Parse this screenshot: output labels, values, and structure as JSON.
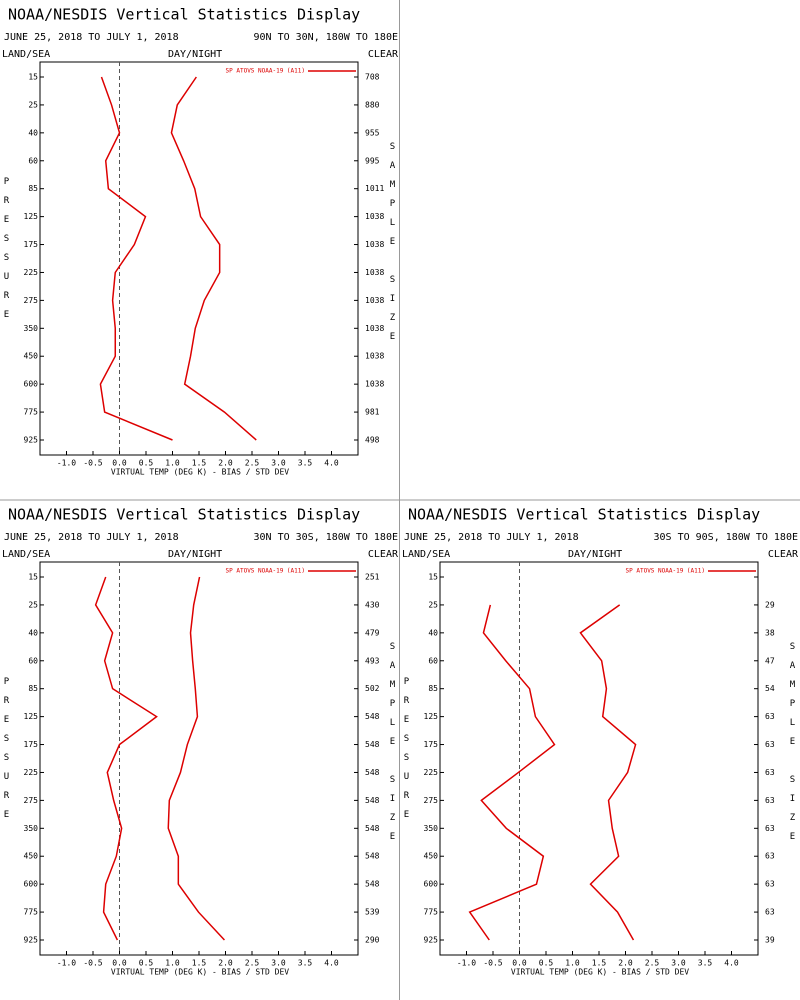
{
  "chart_data": [
    {
      "type": "line",
      "title": "NOAA/NESDIS Vertical Statistics Display",
      "subtitle": "JUNE 25, 2018 TO JULY 1, 2018",
      "region": "90N TO 30N, 180W TO 180E",
      "land_sea": "LAND/SEA",
      "day_night": "DAY/NIGHT",
      "clear": "CLEAR",
      "y_label": "PRESSURE",
      "y2_label": "SAMPLE SIZE",
      "x_label": "VIRTUAL TEMP (DEG K) - BIAS / STD DEV",
      "legend": "SP ATOVS NOAA-19 (A11)",
      "color": "#dd0000",
      "categories": [
        "15",
        "25",
        "40",
        "60",
        "85",
        "125",
        "175",
        "225",
        "275",
        "350",
        "450",
        "600",
        "775",
        "925"
      ],
      "series": [
        {
          "color": "#dd0000",
          "values": [
            -0.34,
            -0.15,
            0.0,
            -0.26,
            -0.21,
            0.49,
            0.28,
            -0.08,
            -0.13,
            -0.08,
            -0.08,
            -0.36,
            -0.28,
            1.0
          ]
        },
        {
          "color": "#dd0000",
          "values": [
            1.45,
            1.09,
            0.98,
            1.21,
            1.42,
            1.53,
            1.89,
            1.89,
            1.6,
            1.43,
            1.34,
            1.23,
            1.98,
            2.58
          ]
        }
      ],
      "sample_size": [
        708,
        880,
        955,
        995,
        1011,
        1038,
        1038,
        1038,
        1038,
        1038,
        1038,
        1038,
        981,
        498
      ],
      "xlim": [
        -1.5,
        4.5
      ],
      "reference_line": 0,
      "xticks": [
        {
          "value": -1,
          "label": "-1.0"
        },
        -0.5,
        {
          "value": 0,
          "label": "0.0"
        },
        0.5,
        {
          "value": 1,
          "label": "1.0"
        },
        1.5,
        {
          "value": 2,
          "label": "2.0"
        },
        2.5,
        {
          "value": 3,
          "label": "3.0"
        },
        3.5,
        {
          "value": 4,
          "label": "4.0"
        }
      ]
    },
    {
      "type": "line",
      "title": "NOAA/NESDIS Vertical Statistics Display",
      "subtitle": "JUNE 25, 2018 TO JULY 1, 2018",
      "region": "30N TO 30S, 180W TO 180E",
      "land_sea": "LAND/SEA",
      "day_night": "DAY/NIGHT",
      "clear": "CLEAR",
      "y_label": "PRESSURE",
      "y2_label": "SAMPLE SIZE",
      "x_label": "VIRTUAL TEMP (DEG K) - BIAS / STD DEV",
      "legend": "SP ATOVS NOAA-19 (A11)",
      "color": "#dd0000",
      "categories": [
        "15",
        "25",
        "40",
        "60",
        "85",
        "125",
        "175",
        "225",
        "275",
        "350",
        "450",
        "600",
        "775",
        "925"
      ],
      "series": [
        {
          "color": "#dd0000",
          "values": [
            -0.26,
            -0.45,
            -0.13,
            -0.28,
            -0.13,
            0.7,
            0.0,
            -0.23,
            -0.11,
            0.04,
            -0.06,
            -0.26,
            -0.3,
            -0.04
          ]
        },
        {
          "color": "#dd0000",
          "values": [
            1.51,
            1.4,
            1.34,
            1.38,
            1.43,
            1.47,
            1.28,
            1.15,
            0.94,
            0.92,
            1.11,
            1.11,
            1.49,
            1.98
          ]
        }
      ],
      "sample_size": [
        251,
        430,
        479,
        493,
        502,
        548,
        548,
        548,
        548,
        548,
        548,
        548,
        539,
        290
      ],
      "xlim": [
        -1.5,
        4.5
      ],
      "reference_line": 0,
      "xticks": [
        {
          "value": -1,
          "label": "-1.0"
        },
        -0.5,
        {
          "value": 0,
          "label": "0.0"
        },
        0.5,
        {
          "value": 1,
          "label": "1.0"
        },
        1.5,
        {
          "value": 2,
          "label": "2.0"
        },
        2.5,
        {
          "value": 3,
          "label": "3.0"
        },
        3.5,
        {
          "value": 4,
          "label": "4.0"
        }
      ]
    },
    {
      "type": "line",
      "title": "NOAA/NESDIS Vertical Statistics Display",
      "subtitle": "JUNE 25, 2018 TO JULY 1, 2018",
      "region": "30S TO 90S, 180W TO 180E",
      "land_sea": "LAND/SEA",
      "day_night": "DAY/NIGHT",
      "clear": "CLEAR",
      "y_label": "PRESSURE",
      "y2_label": "SAMPLE SIZE",
      "x_label": "VIRTUAL TEMP (DEG K) - BIAS / STD DEV",
      "legend": "SP ATOVS NOAA-19 (A11)",
      "color": "#dd0000",
      "categories": [
        "15",
        "25",
        "40",
        "60",
        "85",
        "125",
        "175",
        "225",
        "275",
        "350",
        "450",
        "600",
        "775",
        "925"
      ],
      "series": [
        {
          "color": "#dd0000",
          "values": [
            null,
            -0.55,
            -0.68,
            -0.26,
            0.19,
            0.3,
            0.66,
            -0.02,
            -0.72,
            -0.25,
            0.45,
            0.32,
            -0.94,
            -0.57
          ]
        },
        {
          "color": "#dd0000",
          "values": [
            null,
            1.89,
            1.15,
            1.55,
            1.64,
            1.57,
            2.19,
            2.04,
            1.68,
            1.75,
            1.87,
            1.34,
            1.85,
            2.15
          ]
        }
      ],
      "sample_size": [
        null,
        29,
        38,
        47,
        54,
        63,
        63,
        63,
        63,
        63,
        63,
        63,
        63,
        39
      ],
      "xlim": [
        -1.5,
        4.5
      ],
      "reference_line": 0,
      "xticks": [
        {
          "value": -1,
          "label": "-1.0"
        },
        -0.5,
        {
          "value": 0,
          "label": "0.0"
        },
        0.5,
        {
          "value": 1,
          "label": "1.0"
        },
        1.5,
        {
          "value": 2,
          "label": "2.0"
        },
        2.5,
        {
          "value": 3,
          "label": "3.0"
        },
        3.5,
        {
          "value": 4,
          "label": "4.0"
        }
      ]
    }
  ]
}
